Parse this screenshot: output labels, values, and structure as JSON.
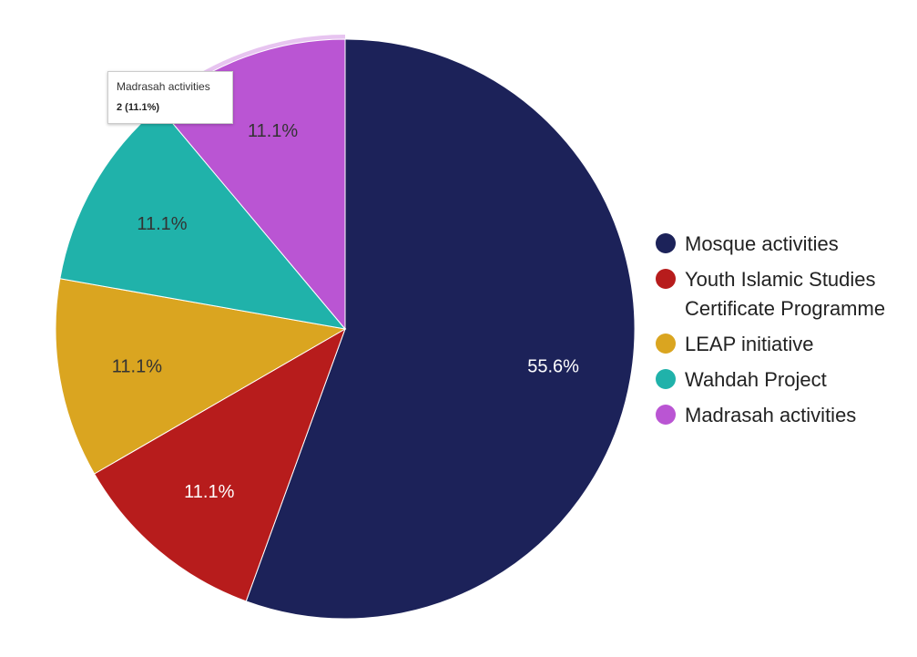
{
  "chart_data": {
    "type": "pie",
    "categories": [
      "Mosque activities",
      "Youth Islamic Studies Certificate Programme",
      "LEAP initiative",
      "Wahdah Project",
      "Madrasah activities"
    ],
    "legend_lines": [
      [
        "Mosque activities"
      ],
      [
        "Youth Islamic Studies",
        "Certificate Programme"
      ],
      [
        "LEAP initiative"
      ],
      [
        "Wahdah Project"
      ],
      [
        "Madrasah activities"
      ]
    ],
    "values": [
      10,
      2,
      2,
      2,
      2
    ],
    "percent_labels": [
      "55.6%",
      "11.1%",
      "11.1%",
      "11.1%",
      "11.1%"
    ],
    "colors": [
      "#1c2259",
      "#b71c1c",
      "#daa520",
      "#20b2aa",
      "#ba55d3"
    ],
    "label_colors": [
      "#ffffff",
      "#ffffff",
      "#333333",
      "#333333",
      "#333333"
    ],
    "highlighted_category": "Madrasah activities",
    "legend_position": "right"
  },
  "tooltip": {
    "title": "Madrasah activities",
    "value": "2 (11.1%)"
  }
}
